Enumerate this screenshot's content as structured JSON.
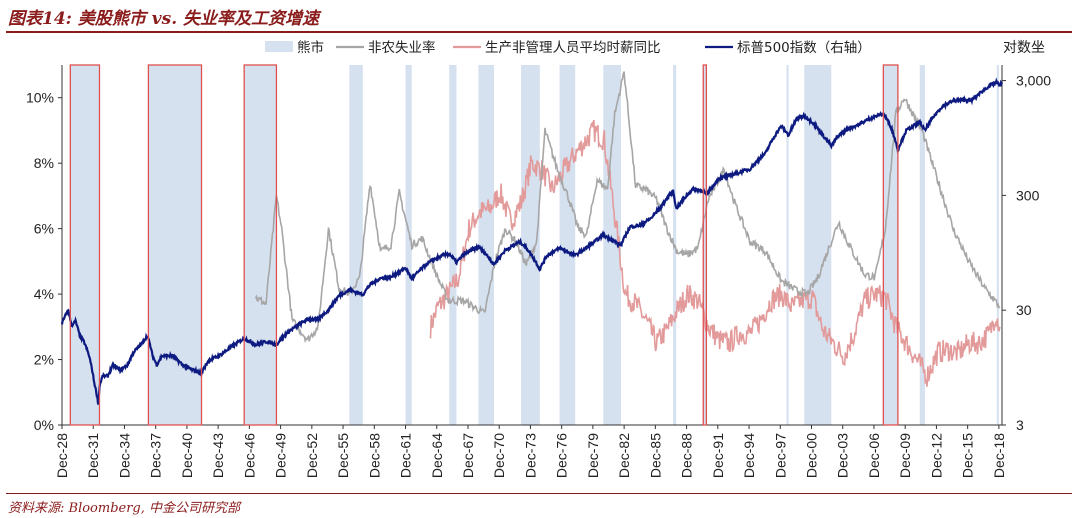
{
  "header": {
    "title": "图表14: 美股熊市 vs. 失业率及工资增速"
  },
  "footer": {
    "source": "资料来源: Bloomberg, 中金公司研究部"
  },
  "chart_data": {
    "type": "line",
    "title": "图表14: 美股熊市 vs. 失业率及工资增速",
    "x_range": [
      1928.9,
      2019.2
    ],
    "x_tick_labels": [
      "Dec-28",
      "Dec-31",
      "Dec-34",
      "Dec-37",
      "Dec-40",
      "Dec-43",
      "Dec-46",
      "Dec-49",
      "Dec-52",
      "Dec-55",
      "Dec-58",
      "Dec-61",
      "Dec-64",
      "Dec-67",
      "Dec-70",
      "Dec-73",
      "Dec-76",
      "Dec-79",
      "Dec-82",
      "Dec-85",
      "Dec-88",
      "Dec-91",
      "Dec-94",
      "Dec-97",
      "Dec-00",
      "Dec-03",
      "Dec-06",
      "Dec-09",
      "Dec-12",
      "Dec-15",
      "Dec-18"
    ],
    "y_left": {
      "min": 0,
      "max": 11,
      "tick_values": [
        0,
        2,
        4,
        6,
        8,
        10
      ],
      "tick_labels": [
        "0%",
        "2%",
        "4%",
        "6%",
        "8%",
        "10%"
      ]
    },
    "y_right": {
      "label": "对数坐",
      "scale": "log",
      "tick_values": [
        3,
        30,
        300,
        3000
      ],
      "tick_labels": [
        "3",
        "30",
        "300",
        "3,000"
      ],
      "min": 3,
      "max": 4100
    },
    "legend": [
      "熊市",
      "非农失业率",
      "生产非管理人员平均时薪同比",
      "标普500指数（右轴）"
    ],
    "colors": {
      "bear": "#d6e1f0",
      "bear_outline": "#e05050",
      "unemployment": "#a6a6a6",
      "wages": "#e39a9a",
      "sp500": "#0d1a80"
    },
    "bear_markets": [
      [
        1929.7,
        1932.5
      ],
      [
        1937.2,
        1942.3
      ],
      [
        1946.4,
        1949.5
      ],
      [
        1956.5,
        1957.8
      ],
      [
        1961.9,
        1962.5
      ],
      [
        1966.1,
        1966.8
      ],
      [
        1968.9,
        1970.4
      ],
      [
        1973.0,
        1974.8
      ],
      [
        1976.7,
        1978.2
      ],
      [
        1980.9,
        1982.6
      ],
      [
        1987.6,
        1987.9
      ],
      [
        1990.5,
        1990.8
      ],
      [
        1998.5,
        1998.7
      ],
      [
        2000.2,
        2002.8
      ],
      [
        2007.8,
        2009.2
      ],
      [
        2011.3,
        2011.8
      ],
      [
        2018.7,
        2018.9
      ]
    ],
    "highlighted_bear_markets": [
      [
        1929.7,
        1932.5
      ],
      [
        1937.2,
        1942.3
      ],
      [
        1946.4,
        1949.5
      ],
      [
        1990.5,
        1990.8
      ],
      [
        2007.8,
        2009.2
      ]
    ],
    "sp500": {
      "x": [
        1928.9,
        1929.5,
        1929.8,
        1930.2,
        1930.6,
        1931.0,
        1931.5,
        1932.0,
        1932.4,
        1932.5,
        1932.8,
        1933.3,
        1933.8,
        1934.5,
        1935.2,
        1935.8,
        1936.5,
        1937.1,
        1937.6,
        1938.0,
        1938.5,
        1939.5,
        1940.5,
        1941.5,
        1942.3,
        1943.0,
        1944.0,
        1945.0,
        1946.4,
        1947.5,
        1948.5,
        1949.5,
        1950.5,
        1951.5,
        1952.5,
        1953.5,
        1954.5,
        1955.5,
        1956.5,
        1957.8,
        1958.5,
        1959.5,
        1960.5,
        1961.9,
        1962.5,
        1963.5,
        1964.5,
        1965.5,
        1966.1,
        1966.8,
        1967.5,
        1968.9,
        1969.5,
        1970.4,
        1971.5,
        1972.9,
        1973.5,
        1974.8,
        1975.5,
        1976.7,
        1978.2,
        1979.5,
        1980.9,
        1982.6,
        1983.5,
        1984.5,
        1985.5,
        1986.5,
        1987.6,
        1987.9,
        1988.5,
        1989.5,
        1990.5,
        1990.8,
        1992.0,
        1993.5,
        1995.0,
        1996.5,
        1998.0,
        1998.7,
        1999.5,
        2000.2,
        2001.0,
        2002.0,
        2002.8,
        2003.5,
        2004.5,
        2005.5,
        2006.5,
        2007.8,
        2008.5,
        2009.2,
        2010.0,
        2011.3,
        2011.8,
        2012.5,
        2013.5,
        2014.5,
        2015.5,
        2016.2,
        2017.0,
        2018.0,
        2018.7,
        2019.0,
        2019.2
      ],
      "y": [
        23,
        30,
        22,
        24,
        18,
        16,
        12,
        7,
        4.5,
        6.5,
        8,
        8,
        10,
        9,
        10,
        13,
        15,
        18,
        12,
        10,
        12,
        12,
        10,
        9,
        8.5,
        11,
        12,
        14,
        17,
        15,
        16,
        15,
        19,
        22,
        25,
        25,
        30,
        40,
        45,
        41,
        50,
        57,
        58,
        70,
        56,
        70,
        82,
        90,
        93,
        78,
        92,
        107,
        95,
        75,
        100,
        118,
        105,
        68,
        90,
        104,
        90,
        108,
        135,
        110,
        160,
        165,
        190,
        240,
        330,
        230,
        270,
        340,
        330,
        300,
        420,
        460,
        510,
        700,
        1200,
        1000,
        1400,
        1480,
        1300,
        1000,
        800,
        1000,
        1150,
        1250,
        1400,
        1550,
        1200,
        740,
        1100,
        1300,
        1100,
        1400,
        1800,
        2000,
        2050,
        2000,
        2300,
        2700,
        2900,
        2700,
        2900
      ]
    },
    "unemployment": {
      "x": [
        1947.5,
        1948.5,
        1949.5,
        1950.0,
        1951.0,
        1952.5,
        1953.5,
        1954.5,
        1955.5,
        1956.5,
        1957.5,
        1958.5,
        1959.5,
        1960.5,
        1961.3,
        1962.5,
        1963.5,
        1965.0,
        1966.0,
        1967.5,
        1969.5,
        1970.5,
        1971.5,
        1972.5,
        1973.5,
        1974.5,
        1975.3,
        1976.5,
        1977.5,
        1978.5,
        1979.3,
        1980.3,
        1981.3,
        1982.0,
        1982.9,
        1984.0,
        1985.0,
        1986.0,
        1987.0,
        1988.0,
        1989.0,
        1990.0,
        1991.0,
        1992.5,
        1993.5,
        1995.0,
        1996.5,
        1998.0,
        1999.5,
        2000.5,
        2001.5,
        2003.5,
        2004.5,
        2006.0,
        2007.0,
        2008.0,
        2009.0,
        2009.8,
        2010.5,
        2011.5,
        2013.0,
        2014.5,
        2016.0,
        2017.5,
        2018.5,
        2019.0
      ],
      "y": [
        3.9,
        3.7,
        7.0,
        6.0,
        3.2,
        2.6,
        3.0,
        6.0,
        4.2,
        4.0,
        4.5,
        7.4,
        5.3,
        5.5,
        7.1,
        5.5,
        5.7,
        4.5,
        3.8,
        3.8,
        3.4,
        5.0,
        6.0,
        5.6,
        4.9,
        5.6,
        9.0,
        7.8,
        7.0,
        6.0,
        5.8,
        7.5,
        7.2,
        9.5,
        10.8,
        7.3,
        7.2,
        6.9,
        6.0,
        5.3,
        5.2,
        5.4,
        6.9,
        7.8,
        6.8,
        5.6,
        5.3,
        4.4,
        4.1,
        4.0,
        4.5,
        6.2,
        5.5,
        4.6,
        4.5,
        6.0,
        9.5,
        10.0,
        9.6,
        9.0,
        7.5,
        6.0,
        5.0,
        4.2,
        3.8,
        3.6
      ]
    },
    "wages": {
      "x": [
        1964.3,
        1965.0,
        1966.0,
        1967.0,
        1968.0,
        1969.0,
        1970.0,
        1971.0,
        1972.0,
        1973.0,
        1974.0,
        1975.0,
        1976.0,
        1977.0,
        1978.0,
        1979.0,
        1980.0,
        1981.0,
        1982.0,
        1983.0,
        1984.0,
        1985.0,
        1986.0,
        1987.0,
        1988.0,
        1989.0,
        1990.0,
        1991.0,
        1992.0,
        1993.0,
        1994.0,
        1995.0,
        1996.0,
        1997.0,
        1998.0,
        1999.0,
        2000.0,
        2001.0,
        2002.0,
        2003.0,
        2004.0,
        2005.0,
        2006.0,
        2007.0,
        2008.0,
        2009.0,
        2010.0,
        2011.0,
        2012.0,
        2013.0,
        2014.0,
        2015.0,
        2016.0,
        2017.0,
        2018.0,
        2018.6,
        2019.0
      ],
      "y": [
        3.0,
        3.6,
        4.0,
        4.5,
        6.0,
        6.5,
        6.6,
        7.1,
        6.2,
        6.8,
        8.0,
        7.8,
        7.2,
        7.7,
        8.2,
        8.6,
        9.0,
        8.7,
        6.4,
        4.0,
        3.7,
        3.2,
        2.5,
        2.9,
        3.5,
        4.0,
        3.8,
        3.0,
        2.6,
        2.5,
        2.8,
        2.8,
        3.2,
        3.8,
        4.0,
        3.6,
        3.8,
        3.9,
        2.9,
        2.5,
        2.1,
        2.8,
        3.8,
        4.0,
        3.9,
        3.0,
        2.5,
        2.0,
        1.5,
        2.2,
        2.3,
        2.2,
        2.5,
        2.5,
        2.8,
        3.4,
        3.0
      ]
    }
  }
}
